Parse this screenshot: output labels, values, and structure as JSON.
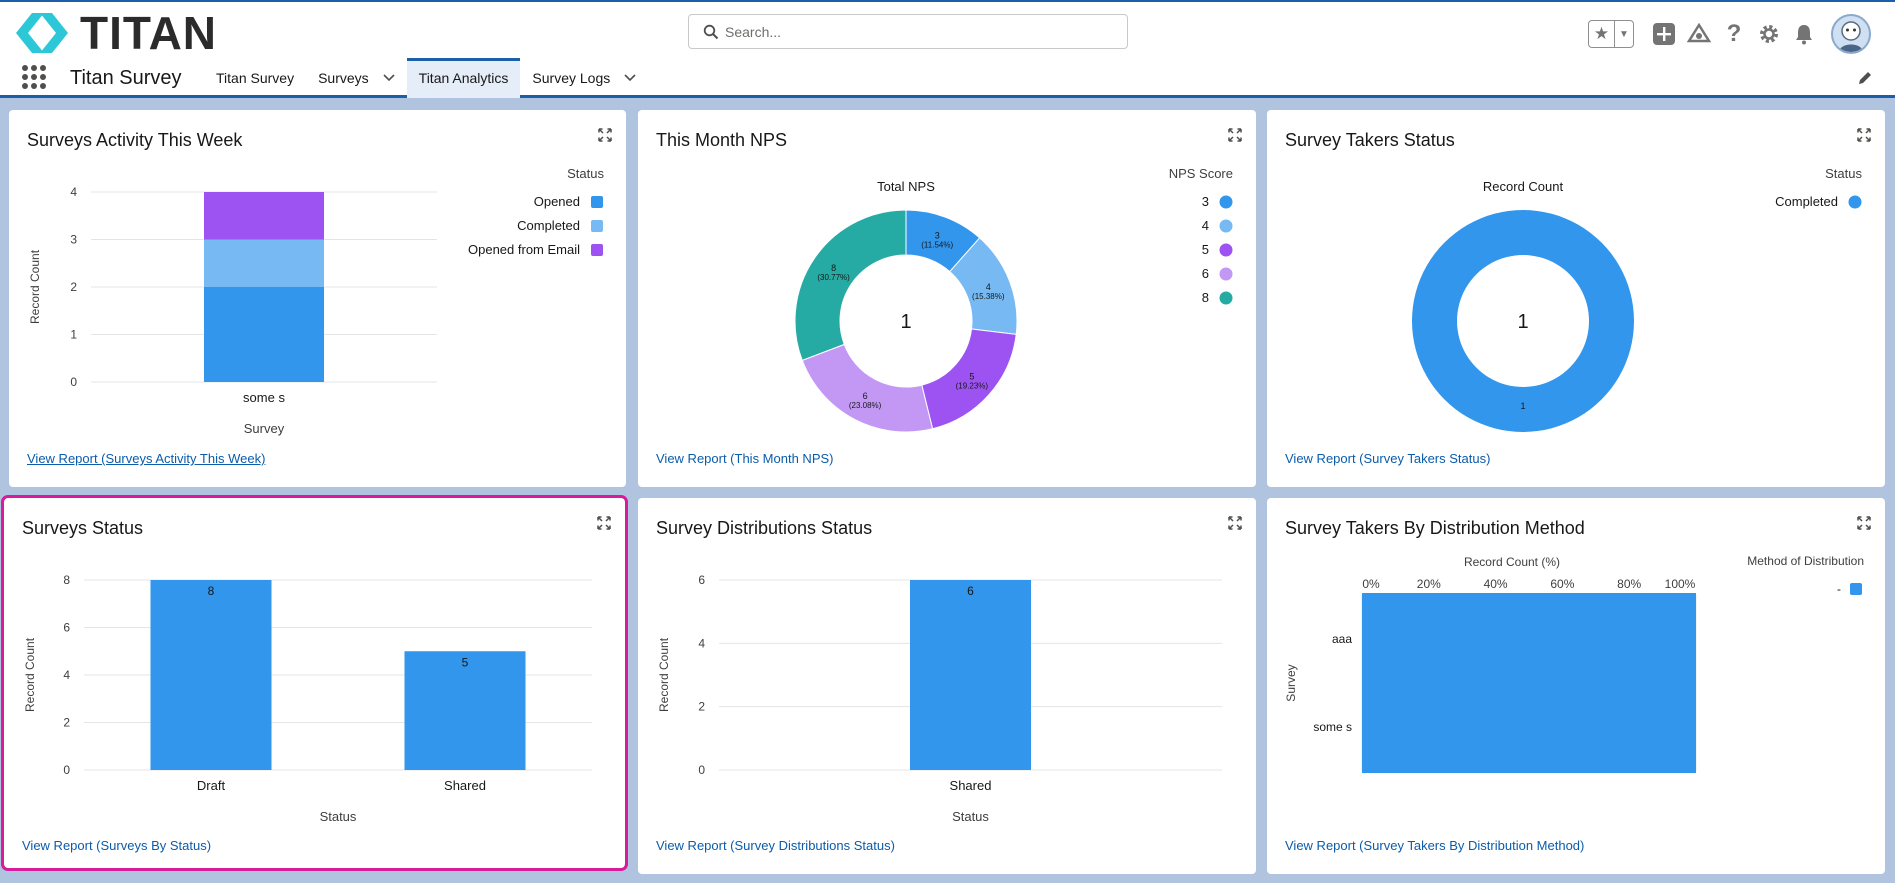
{
  "header": {
    "logo_text": "TITAN",
    "search_placeholder": "Search..."
  },
  "nav": {
    "app_name": "Titan Survey",
    "tabs": [
      {
        "label": "Titan Survey"
      },
      {
        "label": "Surveys"
      },
      {
        "label": "Titan Analytics"
      },
      {
        "label": "Survey Logs"
      }
    ]
  },
  "colors": {
    "opened": "#3296ed",
    "completed": "#77b9f2",
    "opened_from_email": "#9d53f2",
    "nps_6": "#c398f5",
    "nps_8": "#26aba4",
    "accent": "#1b5fa8",
    "selection": "#d81b9a"
  },
  "cards": {
    "activity": {
      "title": "Surveys Activity This Week",
      "link": "View Report (Surveys Activity This Week)"
    },
    "nps": {
      "title": "This Month NPS",
      "link": "View Report (This Month NPS)"
    },
    "takers": {
      "title": "Survey Takers Status",
      "link": "View Report (Survey Takers Status)"
    },
    "status": {
      "title": "Surveys Status",
      "link": "View Report (Surveys By Status)"
    },
    "dist": {
      "title": "Survey Distributions Status",
      "link": "View Report (Survey Distributions Status)"
    },
    "method": {
      "title": "Survey Takers By Distribution Method",
      "link": "View Report (Survey Takers By Distribution Method)"
    }
  },
  "chart_data": [
    {
      "type": "bar",
      "stacked": true,
      "categories": [
        "some s"
      ],
      "series": [
        {
          "name": "Opened",
          "values": [
            2
          ]
        },
        {
          "name": "Completed",
          "values": [
            1
          ]
        },
        {
          "name": "Opened from Email",
          "values": [
            1
          ]
        }
      ],
      "xlabel": "Survey",
      "ylabel": "Record Count",
      "legend_title": "Status",
      "ylim": [
        0,
        4
      ],
      "yticks": [
        "0",
        "1",
        "2",
        "3",
        "4"
      ],
      "legend_position": "right"
    },
    {
      "type": "pie",
      "donut": true,
      "title": "Total NPS",
      "center_label": "1",
      "legend_title": "NPS Score",
      "slices": [
        {
          "name": "3",
          "value": 3,
          "label": "3",
          "pct": "(11.54%)"
        },
        {
          "name": "4",
          "value": 4,
          "label": "4",
          "pct": "(15.38%)"
        },
        {
          "name": "5",
          "value": 5,
          "label": "5",
          "pct": "(19.23%)"
        },
        {
          "name": "6",
          "value": 6,
          "label": "6",
          "pct": "(23.08%)"
        },
        {
          "name": "8",
          "value": 8,
          "label": "8",
          "pct": "(30.77%)"
        }
      ],
      "legend_position": "right"
    },
    {
      "type": "pie",
      "donut": true,
      "title": "Record Count",
      "center_label": "1",
      "legend_title": "Status",
      "slices": [
        {
          "name": "Completed",
          "value": 1,
          "label": "1"
        }
      ],
      "legend_position": "right"
    },
    {
      "type": "bar",
      "categories": [
        "Draft",
        "Shared"
      ],
      "values": [
        8,
        5
      ],
      "value_labels": [
        "8",
        "5"
      ],
      "xlabel": "Status",
      "ylabel": "Record Count",
      "ylim": [
        0,
        8
      ],
      "yticks": [
        "0",
        "2",
        "4",
        "6",
        "8"
      ]
    },
    {
      "type": "bar",
      "categories": [
        "Shared"
      ],
      "values": [
        6
      ],
      "value_labels": [
        "6"
      ],
      "xlabel": "Status",
      "ylabel": "Record Count",
      "ylim": [
        0,
        6
      ],
      "yticks": [
        "0",
        "2",
        "4",
        "6"
      ]
    },
    {
      "type": "bar",
      "orientation": "horizontal",
      "categories": [
        "aaa",
        "some s"
      ],
      "series": [
        {
          "name": "-",
          "values": [
            100,
            100
          ]
        }
      ],
      "xlabel": "Record Count (%)",
      "ylabel": "Survey",
      "legend_title": "Method of Distribution",
      "xlim": [
        0,
        100
      ],
      "xticks": [
        "0%",
        "20%",
        "40%",
        "60%",
        "80%",
        "100%"
      ],
      "legend_position": "top-right"
    }
  ]
}
